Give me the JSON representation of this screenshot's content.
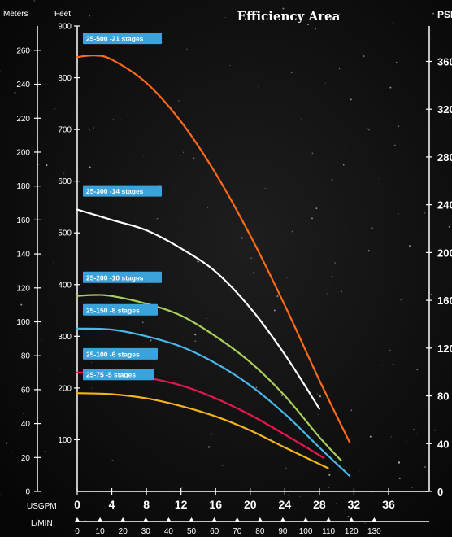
{
  "chart_data": {
    "type": "line",
    "title": "Efficiency Area",
    "x_label": "USGPM",
    "x_label_secondary": "L/MIN",
    "y_label_left_outer": "Meters",
    "y_label_left_inner": "Feet",
    "y_label_right": "PSI",
    "xlim": [
      0,
      36
    ],
    "ylim": [
      0,
      900
    ],
    "grid": false,
    "x_ticks": [
      "0",
      "4",
      "8",
      "12",
      "16",
      "20",
      "24",
      "28",
      "32",
      "36"
    ],
    "feet_ticks": [
      "100",
      "200",
      "300",
      "400",
      "500",
      "600",
      "700",
      "800",
      "900"
    ],
    "meter_ticks": [
      "0",
      "20",
      "40",
      "60",
      "80",
      "100",
      "120",
      "140",
      "160",
      "180",
      "200",
      "220",
      "240",
      "260"
    ],
    "psi_ticks": [
      "0",
      "40",
      "80",
      "120",
      "160",
      "200",
      "240",
      "280",
      "320",
      "360"
    ],
    "lmin_ticks": [
      "0",
      "10",
      "20",
      "30",
      "40",
      "50",
      "60",
      "70",
      "80",
      "90",
      "100",
      "110",
      "120",
      "130"
    ],
    "series": [
      {
        "name": "25-500 -21 stages",
        "color": "#ff6a1a",
        "x": [
          0,
          2,
          4,
          8,
          12,
          16,
          20,
          24,
          28,
          31.5
        ],
        "y": [
          840,
          843,
          835,
          790,
          715,
          615,
          495,
          360,
          215,
          95
        ]
      },
      {
        "name": "25-300 -14 stages",
        "color": "#ffffff",
        "x": [
          0,
          4,
          8,
          12,
          16,
          20,
          24,
          28
        ],
        "y": [
          545,
          525,
          505,
          470,
          425,
          355,
          265,
          160
        ]
      },
      {
        "name": "25-200 -10 stages",
        "color": "#a8d05a",
        "x": [
          0,
          2,
          4,
          8,
          12,
          16,
          20,
          24,
          28,
          30.5
        ],
        "y": [
          378,
          380,
          378,
          363,
          340,
          300,
          250,
          185,
          105,
          60
        ]
      },
      {
        "name": "25-150 -8 stages",
        "color": "#4ab8ea",
        "x": [
          0,
          4,
          8,
          12,
          16,
          20,
          24,
          28,
          31.5
        ],
        "y": [
          315,
          313,
          300,
          280,
          248,
          205,
          150,
          85,
          30
        ]
      },
      {
        "name": "25-100 -6 stages",
        "color": "#e8174f",
        "x": [
          0,
          4,
          8,
          12,
          16,
          20,
          24,
          28.5
        ],
        "y": [
          230,
          229,
          220,
          205,
          180,
          148,
          110,
          65
        ]
      },
      {
        "name": "25-75 -5 stages",
        "color": "#f5b51a",
        "x": [
          0,
          4,
          8,
          12,
          16,
          20,
          24,
          29
        ],
        "y": [
          190,
          188,
          180,
          165,
          145,
          118,
          85,
          45
        ]
      }
    ]
  }
}
